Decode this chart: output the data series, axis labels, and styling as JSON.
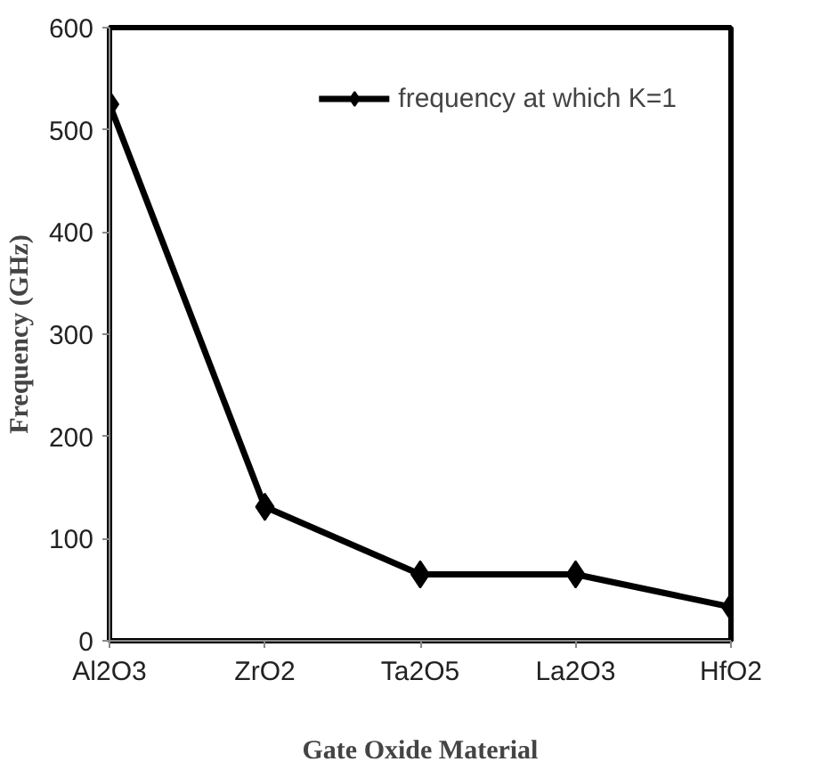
{
  "chart_data": {
    "type": "line",
    "xlabel": "Gate Oxide Material",
    "ylabel": "Frequency (GHz)",
    "categories": [
      "Al2O3",
      "ZrO2",
      "Ta2O5",
      "La2O3",
      "HfO2"
    ],
    "series": [
      {
        "name": "frequency at which K=1",
        "color": "#000000",
        "values": [
          525,
          131,
          65,
          65,
          33
        ]
      }
    ],
    "ylim": [
      0,
      600
    ],
    "yticks": [
      0,
      100,
      200,
      300,
      400,
      500,
      600
    ],
    "grid": false,
    "legend": "top right",
    "marker": "diamond",
    "line_style": "solid"
  }
}
